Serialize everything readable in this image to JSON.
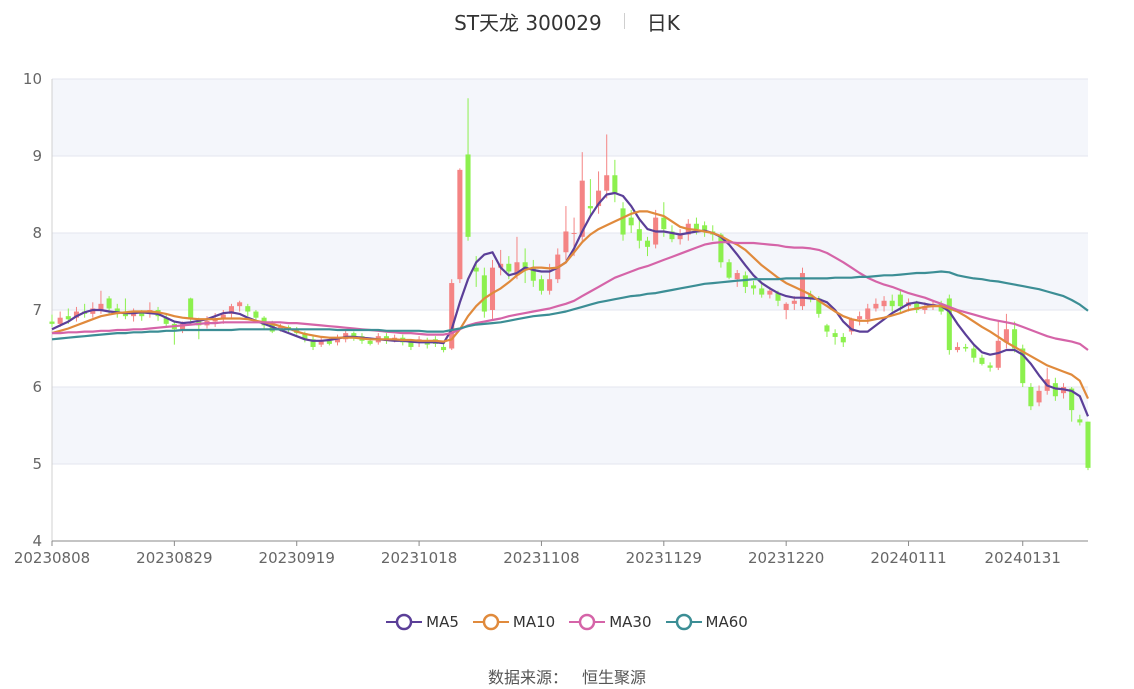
{
  "header": {
    "stock_name": "ST天龙 300029",
    "period": "日K"
  },
  "legend": [
    {
      "name": "MA5",
      "color": "#5b3f98"
    },
    {
      "name": "MA10",
      "color": "#e08a3c"
    },
    {
      "name": "MA30",
      "color": "#d564a8"
    },
    {
      "name": "MA60",
      "color": "#3c8e95"
    }
  ],
  "source": {
    "label": "数据来源：",
    "value": "恒生聚源"
  },
  "colors": {
    "up": "#f48484",
    "down": "#8cf04e",
    "band": "#f4f6fb",
    "grid": "#e3e6ef",
    "axis": "#8a8a8a"
  },
  "chart_data": {
    "type": "candlestick",
    "ylim": [
      4,
      10
    ],
    "y_ticks": [
      "4",
      "5",
      "6",
      "7",
      "8",
      "9",
      "10"
    ],
    "x_tick_labels": [
      "20230808",
      "20230829",
      "20230919",
      "20231018",
      "20231108",
      "20231129",
      "20231220",
      "20240111",
      "20240131"
    ],
    "x_tick_index": [
      0,
      15,
      30,
      45,
      60,
      75,
      90,
      105,
      119
    ],
    "candles_ohlc": [
      [
        6.85,
        6.82,
        6.94,
        6.78
      ],
      [
        6.82,
        6.9,
        6.98,
        6.78
      ],
      [
        6.92,
        6.88,
        7.02,
        6.82
      ],
      [
        6.9,
        6.98,
        7.04,
        6.85
      ],
      [
        6.98,
        6.95,
        7.08,
        6.9
      ],
      [
        6.95,
        7.02,
        7.1,
        6.9
      ],
      [
        7.0,
        7.08,
        7.25,
        6.95
      ],
      [
        7.15,
        7.02,
        7.18,
        6.95
      ],
      [
        7.02,
        6.95,
        7.08,
        6.9
      ],
      [
        6.98,
        6.92,
        7.15,
        6.88
      ],
      [
        6.92,
        6.96,
        7.02,
        6.85
      ],
      [
        6.96,
        6.92,
        7.0,
        6.86
      ],
      [
        6.95,
        7.0,
        7.1,
        6.9
      ],
      [
        7.0,
        6.92,
        7.04,
        6.86
      ],
      [
        6.9,
        6.82,
        6.94,
        6.78
      ],
      [
        6.82,
        6.75,
        6.86,
        6.55
      ],
      [
        6.75,
        6.82,
        6.85,
        6.7
      ],
      [
        7.15,
        6.88,
        7.16,
        6.8
      ],
      [
        6.85,
        6.8,
        6.9,
        6.62
      ],
      [
        6.8,
        6.86,
        6.92,
        6.76
      ],
      [
        6.85,
        6.88,
        6.96,
        6.78
      ],
      [
        6.88,
        6.94,
        7.0,
        6.82
      ],
      [
        6.95,
        7.05,
        7.08,
        6.9
      ],
      [
        7.05,
        7.1,
        7.12,
        6.98
      ],
      [
        7.05,
        6.98,
        7.08,
        6.92
      ],
      [
        6.98,
        6.9,
        7.0,
        6.86
      ],
      [
        6.9,
        6.8,
        6.92,
        6.74
      ],
      [
        6.82,
        6.72,
        6.86,
        6.7
      ],
      [
        6.74,
        6.78,
        6.82,
        6.72
      ],
      [
        6.78,
        6.74,
        6.8,
        6.7
      ],
      [
        6.75,
        6.7,
        6.78,
        6.68
      ],
      [
        6.7,
        6.62,
        6.72,
        6.58
      ],
      [
        6.62,
        6.52,
        6.66,
        6.48
      ],
      [
        6.55,
        6.6,
        6.64,
        6.52
      ],
      [
        6.6,
        6.56,
        6.64,
        6.54
      ],
      [
        6.58,
        6.64,
        6.68,
        6.54
      ],
      [
        6.62,
        6.7,
        6.74,
        6.58
      ],
      [
        6.7,
        6.65,
        6.72,
        6.6
      ],
      [
        6.66,
        6.6,
        6.7,
        6.56
      ],
      [
        6.6,
        6.56,
        6.64,
        6.54
      ],
      [
        6.58,
        6.66,
        6.7,
        6.55
      ],
      [
        6.66,
        6.6,
        6.7,
        6.56
      ],
      [
        6.62,
        6.64,
        6.68,
        6.58
      ],
      [
        6.64,
        6.58,
        6.68,
        6.54
      ],
      [
        6.58,
        6.52,
        6.62,
        6.48
      ],
      [
        6.58,
        6.62,
        6.66,
        6.52
      ],
      [
        6.6,
        6.55,
        6.64,
        6.5
      ],
      [
        6.62,
        6.56,
        6.66,
        6.52
      ],
      [
        6.52,
        6.48,
        6.58,
        6.45
      ],
      [
        6.5,
        7.35,
        7.4,
        6.48
      ],
      [
        7.4,
        8.82,
        8.84,
        7.35
      ],
      [
        9.02,
        7.95,
        9.75,
        7.9
      ],
      [
        7.55,
        7.5,
        7.7,
        7.3
      ],
      [
        7.45,
        6.98,
        7.55,
        6.9
      ],
      [
        7.0,
        7.55,
        7.65,
        6.88
      ],
      [
        7.55,
        7.6,
        7.78,
        7.45
      ],
      [
        7.6,
        7.5,
        7.7,
        7.4
      ],
      [
        7.45,
        7.62,
        7.95,
        7.4
      ],
      [
        7.62,
        7.55,
        7.8,
        7.35
      ],
      [
        7.55,
        7.38,
        7.65,
        7.3
      ],
      [
        7.4,
        7.25,
        7.45,
        7.2
      ],
      [
        7.25,
        7.4,
        7.6,
        7.2
      ],
      [
        7.4,
        7.72,
        7.8,
        7.35
      ],
      [
        7.75,
        8.02,
        8.35,
        7.65
      ],
      [
        8.0,
        8.0,
        8.2,
        7.7
      ],
      [
        7.95,
        8.68,
        9.05,
        7.9
      ],
      [
        8.35,
        8.32,
        8.7,
        8.2
      ],
      [
        8.35,
        8.55,
        8.8,
        8.25
      ],
      [
        8.55,
        8.75,
        9.28,
        8.45
      ],
      [
        8.75,
        8.52,
        8.95,
        8.4
      ],
      [
        8.32,
        7.98,
        8.4,
        7.9
      ],
      [
        8.2,
        8.1,
        8.3,
        8.0
      ],
      [
        8.05,
        7.9,
        8.2,
        7.8
      ],
      [
        7.9,
        7.82,
        7.95,
        7.7
      ],
      [
        7.85,
        8.2,
        8.3,
        7.8
      ],
      [
        8.2,
        8.05,
        8.4,
        7.95
      ],
      [
        8.02,
        7.92,
        8.1,
        7.88
      ],
      [
        7.92,
        7.98,
        8.05,
        7.85
      ],
      [
        7.98,
        8.12,
        8.18,
        7.9
      ],
      [
        8.12,
        8.05,
        8.2,
        7.98
      ],
      [
        8.1,
        8.02,
        8.15,
        7.95
      ],
      [
        8.02,
        7.98,
        8.1,
        7.9
      ],
      [
        7.98,
        7.62,
        8.0,
        7.55
      ],
      [
        7.62,
        7.42,
        7.66,
        7.4
      ],
      [
        7.4,
        7.48,
        7.52,
        7.3
      ],
      [
        7.45,
        7.3,
        7.5,
        7.22
      ],
      [
        7.32,
        7.28,
        7.38,
        7.2
      ],
      [
        7.28,
        7.2,
        7.35,
        7.16
      ],
      [
        7.2,
        7.25,
        7.3,
        7.15
      ],
      [
        7.22,
        7.12,
        7.25,
        7.05
      ],
      [
        7.0,
        7.08,
        7.1,
        6.88
      ],
      [
        7.08,
        7.12,
        7.18,
        7.0
      ],
      [
        7.05,
        7.48,
        7.55,
        7.0
      ],
      [
        7.2,
        7.15,
        7.25,
        7.1
      ],
      [
        7.15,
        6.95,
        7.18,
        6.9
      ],
      [
        6.8,
        6.72,
        6.82,
        6.65
      ],
      [
        6.7,
        6.65,
        6.75,
        6.55
      ],
      [
        6.65,
        6.58,
        6.7,
        6.52
      ],
      [
        6.72,
        6.88,
        6.9,
        6.68
      ],
      [
        6.88,
        6.92,
        6.98,
        6.8
      ],
      [
        6.88,
        7.02,
        7.08,
        6.82
      ],
      [
        7.02,
        7.08,
        7.15,
        6.98
      ],
      [
        7.05,
        7.12,
        7.18,
        6.98
      ],
      [
        7.12,
        7.05,
        7.2,
        6.98
      ],
      [
        7.2,
        7.05,
        7.25,
        6.95
      ],
      [
        7.05,
        7.1,
        7.15,
        6.98
      ],
      [
        7.1,
        7.0,
        7.12,
        6.96
      ],
      [
        7.0,
        7.05,
        7.1,
        6.95
      ],
      [
        7.05,
        7.08,
        7.12,
        7.0
      ],
      [
        7.08,
        6.98,
        7.12,
        6.94
      ],
      [
        7.15,
        6.48,
        7.2,
        6.42
      ],
      [
        6.48,
        6.52,
        6.58,
        6.45
      ],
      [
        6.52,
        6.5,
        6.56,
        6.46
      ],
      [
        6.5,
        6.38,
        6.54,
        6.32
      ],
      [
        6.38,
        6.3,
        6.42,
        6.28
      ],
      [
        6.28,
        6.25,
        6.32,
        6.2
      ],
      [
        6.25,
        6.6,
        6.85,
        6.22
      ],
      [
        6.58,
        6.75,
        6.95,
        6.5
      ],
      [
        6.75,
        6.5,
        6.85,
        6.45
      ],
      [
        6.5,
        6.05,
        6.55,
        6.0
      ],
      [
        6.0,
        5.75,
        6.05,
        5.7
      ],
      [
        5.8,
        5.95,
        6.02,
        5.75
      ],
      [
        5.95,
        6.1,
        6.25,
        5.9
      ],
      [
        6.05,
        5.88,
        6.12,
        5.82
      ],
      [
        5.92,
        6.0,
        6.05,
        5.85
      ],
      [
        5.98,
        5.7,
        6.0,
        5.55
      ],
      [
        5.58,
        5.54,
        5.64,
        5.5
      ],
      [
        5.55,
        4.95,
        5.55,
        4.92
      ]
    ],
    "series": [
      {
        "name": "MA5",
        "values": [
          6.75,
          6.8,
          6.85,
          6.92,
          6.97,
          7.0,
          7.0,
          6.98,
          6.97,
          6.96,
          6.96,
          6.97,
          6.96,
          6.95,
          6.9,
          6.85,
          6.83,
          6.84,
          6.86,
          6.88,
          6.92,
          6.96,
          6.97,
          6.95,
          6.9,
          6.86,
          6.82,
          6.78,
          6.74,
          6.7,
          6.66,
          6.62,
          6.6,
          6.6,
          6.61,
          6.63,
          6.65,
          6.65,
          6.64,
          6.63,
          6.62,
          6.61,
          6.6,
          6.6,
          6.59,
          6.58,
          6.58,
          6.58,
          6.57,
          6.75,
          7.1,
          7.4,
          7.62,
          7.72,
          7.75,
          7.55,
          7.45,
          7.48,
          7.55,
          7.52,
          7.5,
          7.5,
          7.55,
          7.62,
          7.8,
          8.02,
          8.22,
          8.38,
          8.5,
          8.52,
          8.48,
          8.35,
          8.18,
          8.05,
          8.02,
          8.02,
          8.0,
          7.98,
          8.0,
          8.02,
          8.03,
          8.0,
          7.95,
          7.85,
          7.72,
          7.58,
          7.45,
          7.35,
          7.28,
          7.22,
          7.18,
          7.16,
          7.16,
          7.15,
          7.14,
          7.1,
          7.0,
          6.85,
          6.75,
          6.72,
          6.72,
          6.8,
          6.88,
          6.96,
          7.02,
          7.08,
          7.1,
          7.08,
          7.06,
          7.05,
          6.98,
          6.82,
          6.68,
          6.55,
          6.45,
          6.42,
          6.44,
          6.48,
          6.48,
          6.42,
          6.3,
          6.15,
          6.02,
          5.98,
          5.97,
          5.95,
          5.88,
          5.62
        ]
      },
      {
        "name": "MA10",
        "values": [
          6.7,
          6.73,
          6.76,
          6.8,
          6.84,
          6.88,
          6.92,
          6.94,
          6.96,
          6.97,
          6.98,
          6.98,
          6.98,
          6.97,
          6.95,
          6.92,
          6.9,
          6.89,
          6.88,
          6.88,
          6.88,
          6.89,
          6.89,
          6.89,
          6.88,
          6.86,
          6.84,
          6.82,
          6.79,
          6.76,
          6.72,
          6.69,
          6.67,
          6.65,
          6.64,
          6.64,
          6.64,
          6.64,
          6.63,
          6.62,
          6.62,
          6.62,
          6.62,
          6.61,
          6.61,
          6.6,
          6.6,
          6.6,
          6.59,
          6.62,
          6.75,
          6.92,
          7.05,
          7.15,
          7.22,
          7.28,
          7.36,
          7.45,
          7.52,
          7.55,
          7.55,
          7.54,
          7.55,
          7.62,
          7.75,
          7.88,
          7.98,
          8.05,
          8.1,
          8.15,
          8.2,
          8.25,
          8.28,
          8.28,
          8.25,
          8.22,
          8.15,
          8.08,
          8.05,
          8.04,
          8.02,
          8.0,
          7.96,
          7.9,
          7.85,
          7.78,
          7.68,
          7.58,
          7.5,
          7.42,
          7.35,
          7.3,
          7.25,
          7.2,
          7.12,
          7.05,
          6.98,
          6.92,
          6.88,
          6.86,
          6.86,
          6.88,
          6.9,
          6.93,
          6.96,
          7.0,
          7.02,
          7.04,
          7.05,
          7.05,
          7.02,
          6.98,
          6.92,
          6.85,
          6.78,
          6.72,
          6.65,
          6.58,
          6.52,
          6.46,
          6.4,
          6.34,
          6.28,
          6.24,
          6.2,
          6.16,
          6.08,
          5.85
        ]
      },
      {
        "name": "MA30",
        "values": [
          6.7,
          6.7,
          6.71,
          6.71,
          6.72,
          6.72,
          6.73,
          6.73,
          6.74,
          6.74,
          6.75,
          6.75,
          6.76,
          6.77,
          6.78,
          6.79,
          6.8,
          6.81,
          6.82,
          6.83,
          6.83,
          6.84,
          6.84,
          6.84,
          6.84,
          6.84,
          6.84,
          6.84,
          6.84,
          6.83,
          6.83,
          6.82,
          6.81,
          6.8,
          6.79,
          6.78,
          6.77,
          6.76,
          6.75,
          6.74,
          6.73,
          6.72,
          6.71,
          6.7,
          6.7,
          6.69,
          6.68,
          6.68,
          6.68,
          6.7,
          6.75,
          6.8,
          6.83,
          6.85,
          6.87,
          6.89,
          6.92,
          6.94,
          6.96,
          6.98,
          7.0,
          7.02,
          7.05,
          7.08,
          7.12,
          7.18,
          7.24,
          7.3,
          7.36,
          7.42,
          7.46,
          7.5,
          7.54,
          7.57,
          7.61,
          7.65,
          7.69,
          7.73,
          7.77,
          7.81,
          7.85,
          7.87,
          7.88,
          7.88,
          7.87,
          7.87,
          7.87,
          7.86,
          7.85,
          7.84,
          7.82,
          7.81,
          7.81,
          7.8,
          7.78,
          7.74,
          7.68,
          7.62,
          7.55,
          7.48,
          7.42,
          7.37,
          7.33,
          7.3,
          7.26,
          7.22,
          7.19,
          7.16,
          7.12,
          7.08,
          7.04,
          7.0,
          6.97,
          6.94,
          6.91,
          6.88,
          6.86,
          6.84,
          6.82,
          6.78,
          6.74,
          6.7,
          6.66,
          6.63,
          6.61,
          6.59,
          6.56,
          6.48
        ]
      },
      {
        "name": "MA60",
        "values": [
          6.62,
          6.63,
          6.64,
          6.65,
          6.66,
          6.67,
          6.68,
          6.69,
          6.7,
          6.7,
          6.71,
          6.71,
          6.72,
          6.72,
          6.73,
          6.73,
          6.74,
          6.74,
          6.74,
          6.74,
          6.74,
          6.74,
          6.74,
          6.75,
          6.75,
          6.75,
          6.75,
          6.75,
          6.75,
          6.75,
          6.75,
          6.75,
          6.75,
          6.75,
          6.75,
          6.74,
          6.74,
          6.74,
          6.74,
          6.74,
          6.74,
          6.73,
          6.73,
          6.73,
          6.73,
          6.73,
          6.72,
          6.72,
          6.72,
          6.74,
          6.76,
          6.79,
          6.81,
          6.82,
          6.83,
          6.84,
          6.86,
          6.88,
          6.9,
          6.92,
          6.93,
          6.94,
          6.96,
          6.98,
          7.01,
          7.04,
          7.07,
          7.1,
          7.12,
          7.14,
          7.16,
          7.18,
          7.19,
          7.21,
          7.22,
          7.24,
          7.26,
          7.28,
          7.3,
          7.32,
          7.34,
          7.35,
          7.36,
          7.37,
          7.38,
          7.39,
          7.4,
          7.4,
          7.4,
          7.4,
          7.41,
          7.41,
          7.41,
          7.41,
          7.41,
          7.41,
          7.42,
          7.42,
          7.42,
          7.43,
          7.43,
          7.44,
          7.45,
          7.45,
          7.46,
          7.47,
          7.48,
          7.48,
          7.49,
          7.5,
          7.49,
          7.45,
          7.43,
          7.41,
          7.4,
          7.38,
          7.37,
          7.35,
          7.33,
          7.31,
          7.29,
          7.27,
          7.24,
          7.21,
          7.18,
          7.13,
          7.07,
          6.99
        ]
      }
    ]
  }
}
